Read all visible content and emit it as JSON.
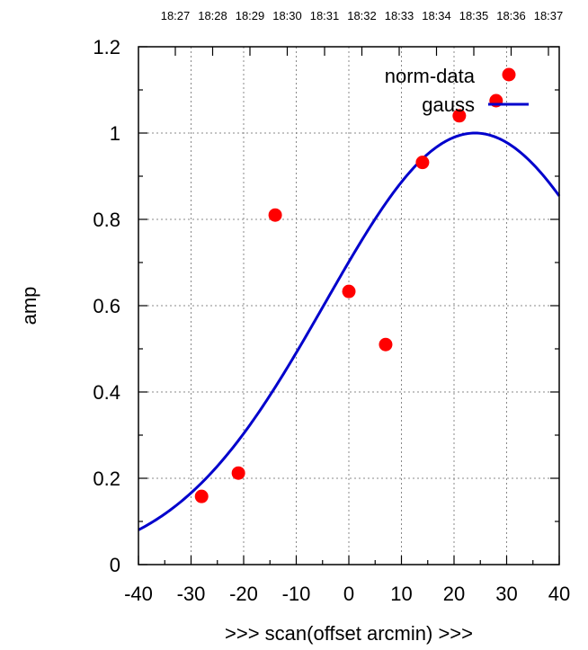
{
  "chart_data": {
    "type": "scatter",
    "xlabel": ">>> scan(offset arcmin) >>>",
    "ylabel": "amp",
    "xlim": [
      -40,
      40
    ],
    "ylim": [
      0,
      1.2
    ],
    "x_ticks": [
      "-40",
      "-30",
      "-20",
      "-10",
      "0",
      "10",
      "20",
      "30",
      "40"
    ],
    "y_ticks": [
      "0",
      "0.2",
      "0.4",
      "0.6",
      "0.8",
      "1",
      "1.2"
    ],
    "top_ticks": [
      "18:27",
      "18:28",
      "18:29",
      "18:30",
      "18:31",
      "18:32",
      "18:33",
      "18:34",
      "18:35",
      "18:36",
      "18:37"
    ],
    "grid": true,
    "legend_position": "top-right",
    "colors": {
      "points": "#ff0000",
      "curve": "#0000cc"
    },
    "series": [
      {
        "name": "norm-data",
        "kind": "points",
        "x": [
          -28,
          -21,
          -14,
          0,
          7,
          14,
          21,
          28
        ],
        "y": [
          0.158,
          0.212,
          0.81,
          0.633,
          0.51,
          0.932,
          1.04,
          1.075
        ]
      },
      {
        "name": "gauss",
        "kind": "curve",
        "peak": 1.0,
        "center": 24,
        "sigma": 28.5
      }
    ]
  }
}
